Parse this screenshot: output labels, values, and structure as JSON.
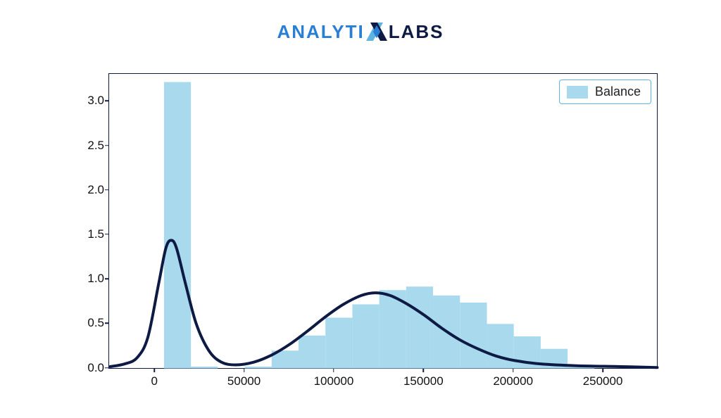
{
  "logo": {
    "part1": "ANALYTI",
    "part2": "LABS"
  },
  "chart": {
    "type": "histogram_kde",
    "legend_label": "Balance",
    "series_color": "#a8d9ed",
    "series_border_color": "#a8d9ed",
    "line_color": "#0d1b44",
    "line_width": 4,
    "frame_color": "#0d1b44",
    "background_color": "#ffffff",
    "legend_border_color": "#5fb3e0",
    "xlim": [
      -25000,
      280000
    ],
    "ylim": [
      0,
      3.3
    ],
    "xticks": [
      0,
      50000,
      100000,
      150000,
      200000,
      250000
    ],
    "xtick_labels": [
      "0",
      "50000",
      "100000",
      "150000",
      "200000",
      "250000"
    ],
    "yticks": [
      0.0,
      0.5,
      1.0,
      1.5,
      2.0,
      2.5,
      3.0
    ],
    "ytick_labels": [
      "0.0",
      "0.5",
      "1.0",
      "1.5",
      "2.0",
      "2.5",
      "3.0"
    ],
    "label_fontsize": 17,
    "legend_fontsize": 18,
    "histogram": {
      "bin_start": -10000,
      "bin_width": 15000,
      "heights": [
        0,
        3.22,
        0.02,
        0,
        0.02,
        0.2,
        0.37,
        0.57,
        0.72,
        0.88,
        0.92,
        0.82,
        0.74,
        0.5,
        0.36,
        0.22,
        0.02,
        0,
        0
      ]
    },
    "kde": {
      "points": [
        [
          -25000,
          0.02
        ],
        [
          -17000,
          0.05
        ],
        [
          -10000,
          0.12
        ],
        [
          -4000,
          0.35
        ],
        [
          2000,
          0.95
        ],
        [
          6000,
          1.35
        ],
        [
          9000,
          1.44
        ],
        [
          12000,
          1.35
        ],
        [
          17000,
          0.95
        ],
        [
          23000,
          0.5
        ],
        [
          30000,
          0.2
        ],
        [
          37000,
          0.07
        ],
        [
          45000,
          0.04
        ],
        [
          55000,
          0.07
        ],
        [
          65000,
          0.15
        ],
        [
          75000,
          0.27
        ],
        [
          85000,
          0.42
        ],
        [
          95000,
          0.58
        ],
        [
          105000,
          0.72
        ],
        [
          115000,
          0.82
        ],
        [
          123000,
          0.85
        ],
        [
          131000,
          0.82
        ],
        [
          140000,
          0.73
        ],
        [
          150000,
          0.6
        ],
        [
          160000,
          0.45
        ],
        [
          170000,
          0.32
        ],
        [
          180000,
          0.22
        ],
        [
          190000,
          0.14
        ],
        [
          200000,
          0.09
        ],
        [
          215000,
          0.05
        ],
        [
          235000,
          0.03
        ],
        [
          260000,
          0.02
        ],
        [
          280000,
          0.01
        ]
      ]
    }
  }
}
